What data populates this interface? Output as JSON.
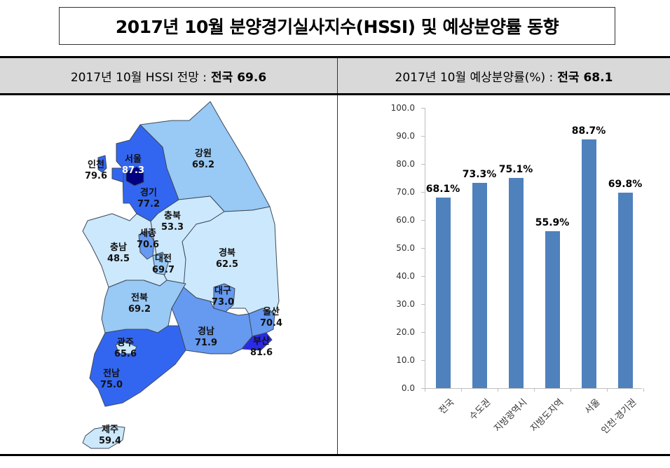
{
  "title": "2017년 10월 분양경기실사지수(HSSI) 및 예상분양률 동향",
  "left_header": {
    "label": "2017년 10월 HSSI 전망 :",
    "emphasis": "전국 69.6"
  },
  "right_header": {
    "label": "2017년 10월 예상분양률(%) :",
    "emphasis": "전국 68.1"
  },
  "map": {
    "regions": [
      {
        "name": "인천",
        "value": "79.6"
      },
      {
        "name": "서울",
        "value": "87.3"
      },
      {
        "name": "경기",
        "value": "77.2"
      },
      {
        "name": "강원",
        "value": "69.2"
      },
      {
        "name": "충북",
        "value": "53.3"
      },
      {
        "name": "세종",
        "value": "70.6"
      },
      {
        "name": "충남",
        "value": "48.5"
      },
      {
        "name": "대전",
        "value": "69.7"
      },
      {
        "name": "경북",
        "value": "62.5"
      },
      {
        "name": "대구",
        "value": "73.0"
      },
      {
        "name": "전북",
        "value": "69.2"
      },
      {
        "name": "울산",
        "value": "70.4"
      },
      {
        "name": "경남",
        "value": "71.9"
      },
      {
        "name": "부산",
        "value": "81.6"
      },
      {
        "name": "광주",
        "value": "65.6"
      },
      {
        "name": "전남",
        "value": "75.0"
      },
      {
        "name": "제주",
        "value": "59.4"
      }
    ],
    "colors": {
      "darkest": "#000080",
      "dark": "#2a2ae8",
      "strong": "#3366f0",
      "medium": "#6699f0",
      "light": "#99c9f5",
      "lightest": "#cce8fc",
      "stroke": "#3c4a5a"
    }
  },
  "chart_data": {
    "type": "bar",
    "title": "2017년 10월 예상분양률(%) : 전국 68.1",
    "categories": [
      "전국",
      "수도권",
      "지방광역시",
      "지방도지역",
      "서울",
      "인천·경기권"
    ],
    "values": [
      68.1,
      73.3,
      75.1,
      55.9,
      88.7,
      69.8
    ],
    "value_labels": [
      "68.1%",
      "73.3%",
      "75.1%",
      "55.9%",
      "88.7%",
      "69.8%"
    ],
    "yticks": [
      "100.0",
      "90.0",
      "80.0",
      "70.0",
      "60.0",
      "50.0",
      "40.0",
      "30.0",
      "20.0",
      "10.0",
      "0.0"
    ],
    "ylim": [
      0,
      100
    ],
    "xlabel": "",
    "ylabel": "",
    "bar_color": "#4f81bd",
    "grid": false
  }
}
